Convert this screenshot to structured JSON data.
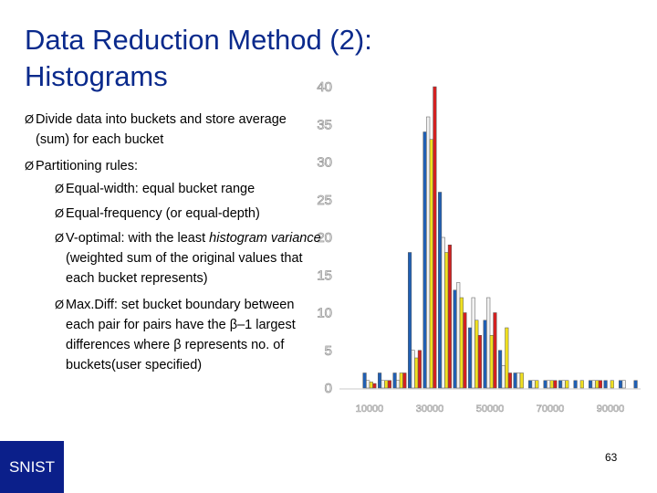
{
  "slide": {
    "title_line1": "Data Reduction Method (2):",
    "title_line2": "Histograms",
    "bullets": [
      {
        "text": "Divide data into buckets and store average (sum) for each bucket"
      },
      {
        "text": "Partitioning rules:"
      }
    ],
    "sub_bullets": [
      {
        "text": "Equal-width: equal bucket range"
      },
      {
        "text": "Equal-frequency (or equal-depth)"
      },
      {
        "pre": "V-optimal: with the least ",
        "em": "histogram variance",
        "post": " (weighted sum of the original values that each bucket represents)"
      },
      {
        "text": "Max.Diff: set bucket boundary between each pair for pairs have the β–1 largest differences where β represents no. of buckets(user specified)"
      }
    ],
    "bullet_marker": "Ø",
    "logo_text": "SNIST",
    "page_number": "63"
  },
  "chart_data": {
    "type": "bar",
    "ylim": [
      0,
      40
    ],
    "y_ticks": [
      0,
      5,
      10,
      15,
      20,
      25,
      30,
      35,
      40
    ],
    "x_ticks": [
      "10000",
      "30000",
      "50000",
      "70000",
      "90000"
    ],
    "xlim": [
      0,
      100000
    ],
    "series_colors": [
      "#1f5fb4",
      "#f2f2f2",
      "#f0e020",
      "#d42020"
    ],
    "bars": [
      {
        "x": 10000,
        "values": [
          2,
          1,
          0.8,
          0.6
        ]
      },
      {
        "x": 15000,
        "values": [
          2,
          1,
          1,
          1
        ]
      },
      {
        "x": 20000,
        "values": [
          2,
          1,
          2,
          2
        ]
      },
      {
        "x": 25000,
        "values": [
          18,
          5,
          4,
          5
        ]
      },
      {
        "x": 30000,
        "values": [
          34,
          36,
          33,
          40
        ]
      },
      {
        "x": 35000,
        "values": [
          26,
          20,
          18,
          19
        ]
      },
      {
        "x": 40000,
        "values": [
          13,
          14,
          12,
          10
        ]
      },
      {
        "x": 45000,
        "values": [
          8,
          12,
          9,
          7
        ]
      },
      {
        "x": 50000,
        "values": [
          9,
          12,
          7,
          10
        ]
      },
      {
        "x": 55000,
        "values": [
          5,
          3,
          8,
          2
        ]
      },
      {
        "x": 60000,
        "values": [
          2,
          2,
          2,
          0
        ]
      },
      {
        "x": 65000,
        "values": [
          1,
          1,
          1,
          0
        ]
      },
      {
        "x": 70000,
        "values": [
          1,
          1,
          1,
          1
        ]
      },
      {
        "x": 75000,
        "values": [
          1,
          1,
          1,
          0
        ]
      },
      {
        "x": 80000,
        "values": [
          1,
          0,
          1,
          0
        ]
      },
      {
        "x": 85000,
        "values": [
          1,
          1,
          1,
          1
        ]
      },
      {
        "x": 90000,
        "values": [
          1,
          0,
          1,
          0
        ]
      },
      {
        "x": 95000,
        "values": [
          1,
          1,
          0,
          0
        ]
      },
      {
        "x": 100000,
        "values": [
          1,
          0,
          0,
          0
        ]
      }
    ]
  }
}
